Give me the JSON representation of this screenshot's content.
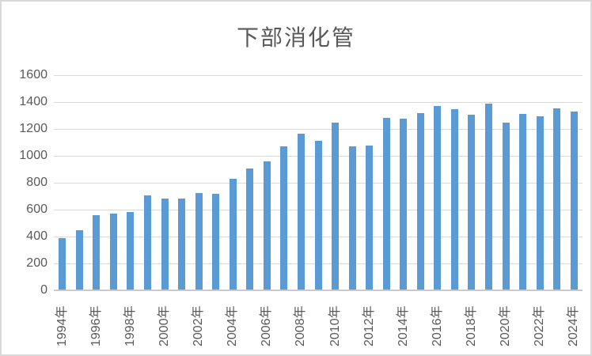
{
  "chart_data": {
    "type": "bar",
    "title": "下部消化管",
    "categories": [
      "1994",
      "1995",
      "1996",
      "1997",
      "1998",
      "1999",
      "2000",
      "2001",
      "2002",
      "2003",
      "2004",
      "2005",
      "2006",
      "2007",
      "2008",
      "2009",
      "2010",
      "2011",
      "2012",
      "2013",
      "2014",
      "2015",
      "2016",
      "2017",
      "2018",
      "2019",
      "2020",
      "2021",
      "2022",
      "2023",
      "2024"
    ],
    "values": [
      390,
      450,
      560,
      570,
      580,
      705,
      680,
      685,
      725,
      720,
      830,
      905,
      960,
      1070,
      1165,
      1110,
      1250,
      1070,
      1075,
      1280,
      1275,
      1320,
      1370,
      1350,
      1305,
      1390,
      1250,
      1310,
      1295,
      1355,
      1330
    ],
    "xlabel": "",
    "ylabel": "",
    "ylim": [
      0,
      1600
    ],
    "yticks": [
      0,
      200,
      400,
      600,
      800,
      1000,
      1200,
      1400,
      1600
    ],
    "xtick_suffix": "年",
    "xtick_every": 2,
    "grid": true,
    "legend_position": "none",
    "bar_color": "#5b9bd5",
    "gridline_color": "#d9d9d9",
    "axis_line_color": "#c9c9c9",
    "text_color": "#595959"
  }
}
